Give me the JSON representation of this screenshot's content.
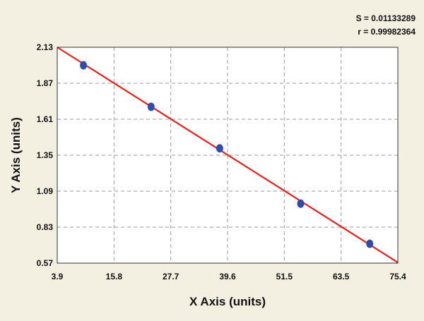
{
  "stats": {
    "s_line": "S = 0.01133289",
    "r_line": "r = 0.99982364"
  },
  "colors": {
    "background": "#f3efe1",
    "plot_bg": "#ffffff",
    "grid": "#9a9a9a",
    "fit_line": "#e8201d",
    "points": "#2f4db0"
  },
  "chart_data": {
    "type": "scatter",
    "xlabel": "X Axis (units)",
    "ylabel": "Y Axis (units)",
    "xlim": [
      3.9,
      75.4
    ],
    "ylim": [
      0.57,
      2.13
    ],
    "x_ticks": [
      "3.9",
      "15.8",
      "27.7",
      "39.6",
      "51.5",
      "63.5",
      "75.4"
    ],
    "y_ticks": [
      "0.57",
      "0.83",
      "1.09",
      "1.35",
      "1.61",
      "1.87",
      "2.13"
    ],
    "grid": true,
    "series": [
      {
        "points": [
          {
            "x": 9.4,
            "y": 2.0
          },
          {
            "x": 23.6,
            "y": 1.7
          },
          {
            "x": 38.0,
            "y": 1.4
          },
          {
            "x": 55.0,
            "y": 1.0
          },
          {
            "x": 69.5,
            "y": 0.71
          }
        ]
      }
    ],
    "fit_line": {
      "x": [
        3.9,
        75.4
      ],
      "y": [
        2.13,
        0.575
      ]
    }
  }
}
